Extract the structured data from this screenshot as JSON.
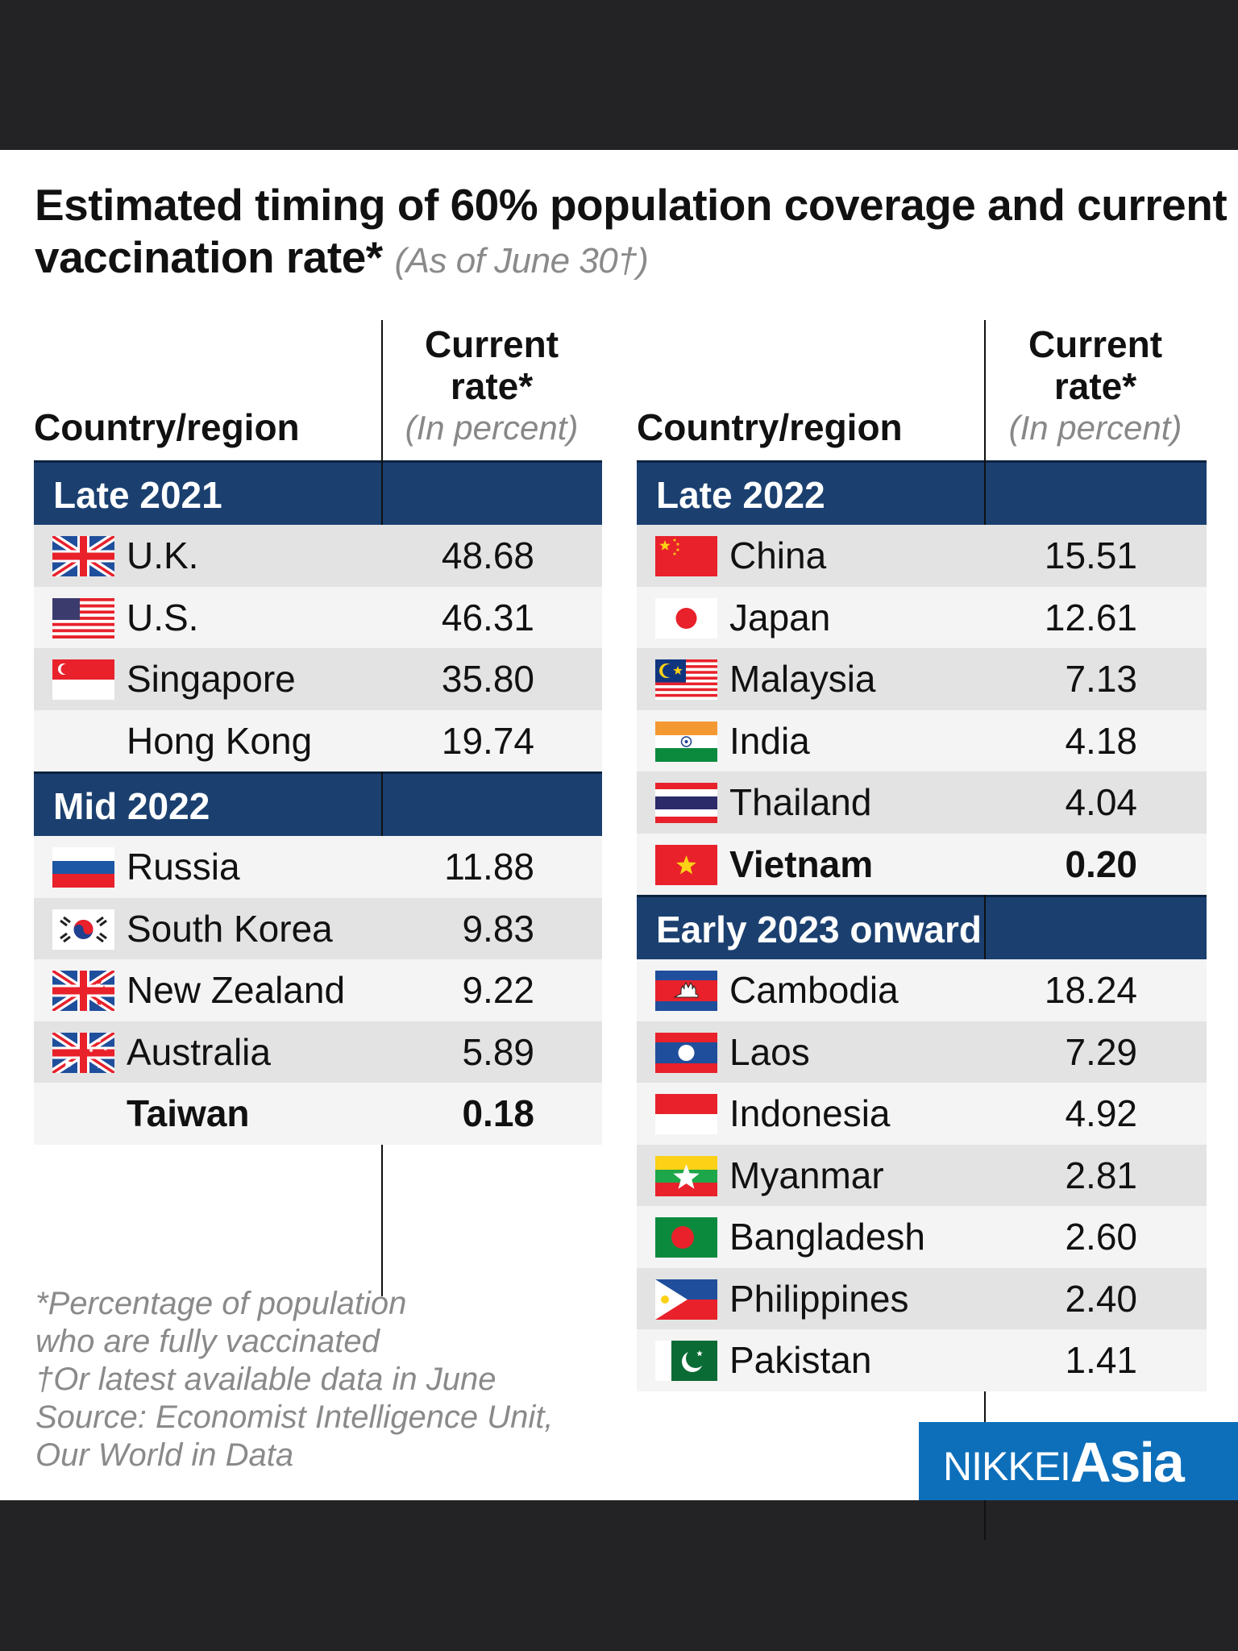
{
  "title": {
    "main": "Estimated timing of 60% population coverage and current vaccination rate*",
    "sub": "(As of June 30†)"
  },
  "columns": {
    "country": "Country/region",
    "rate_line1": "Current",
    "rate_line2": "rate*",
    "rate_unit": "(In percent)"
  },
  "left_table": [
    {
      "section": "Late 2021",
      "rows": [
        {
          "flag": "uk",
          "name": "U.K.",
          "value": "48.68",
          "shaded": true
        },
        {
          "flag": "us",
          "name": "U.S.",
          "value": "46.31",
          "shaded": false
        },
        {
          "flag": "singapore",
          "name": "Singapore",
          "value": "35.80",
          "shaded": true
        },
        {
          "flag": "",
          "name": "Hong Kong",
          "value": "19.74",
          "shaded": false
        }
      ]
    },
    {
      "section": "Mid 2022",
      "rows": [
        {
          "flag": "russia",
          "name": "Russia",
          "value": "11.88",
          "shaded": false
        },
        {
          "flag": "south-korea",
          "name": "South Korea",
          "value": "9.83",
          "shaded": true
        },
        {
          "flag": "new-zealand",
          "name": "New Zealand",
          "value": "9.22",
          "shaded": false
        },
        {
          "flag": "australia",
          "name": "Australia",
          "value": "5.89",
          "shaded": true
        },
        {
          "flag": "",
          "name": "Taiwan",
          "value": "0.18",
          "shaded": false,
          "bold": true
        }
      ]
    }
  ],
  "right_table": [
    {
      "section": "Late 2022",
      "rows": [
        {
          "flag": "china",
          "name": "China",
          "value": "15.51",
          "shaded": true
        },
        {
          "flag": "japan",
          "name": "Japan",
          "value": "12.61",
          "shaded": false
        },
        {
          "flag": "malaysia",
          "name": "Malaysia",
          "value": "7.13",
          "shaded": true
        },
        {
          "flag": "india",
          "name": "India",
          "value": "4.18",
          "shaded": false
        },
        {
          "flag": "thailand",
          "name": "Thailand",
          "value": "4.04",
          "shaded": true
        },
        {
          "flag": "vietnam",
          "name": "Vietnam",
          "value": "0.20",
          "shaded": false,
          "bold": true
        }
      ]
    },
    {
      "section": "Early 2023 onward",
      "rows": [
        {
          "flag": "cambodia",
          "name": "Cambodia",
          "value": "18.24",
          "shaded": false
        },
        {
          "flag": "laos",
          "name": "Laos",
          "value": "7.29",
          "shaded": true
        },
        {
          "flag": "indonesia",
          "name": "Indonesia",
          "value": "4.92",
          "shaded": false
        },
        {
          "flag": "myanmar",
          "name": "Myanmar",
          "value": "2.81",
          "shaded": true
        },
        {
          "flag": "bangladesh",
          "name": "Bangladesh",
          "value": "2.60",
          "shaded": false
        },
        {
          "flag": "philippines",
          "name": "Philippines",
          "value": "2.40",
          "shaded": true
        },
        {
          "flag": "pakistan",
          "name": "Pakistan",
          "value": "1.41",
          "shaded": false
        }
      ]
    }
  ],
  "notes": [
    "*Percentage of population",
    "who are fully vaccinated",
    "†Or latest available data in June",
    "Source: Economist Intelligence Unit,",
    "Our World in Data"
  ],
  "logo": {
    "part1": "NIKKEI",
    "part2": "Asia"
  },
  "colors": {
    "section_header": "#1b4070",
    "logo_bg": "#0d6fba",
    "row_shaded": "#e3e3e3",
    "row_light": "#f4f4f4"
  }
}
